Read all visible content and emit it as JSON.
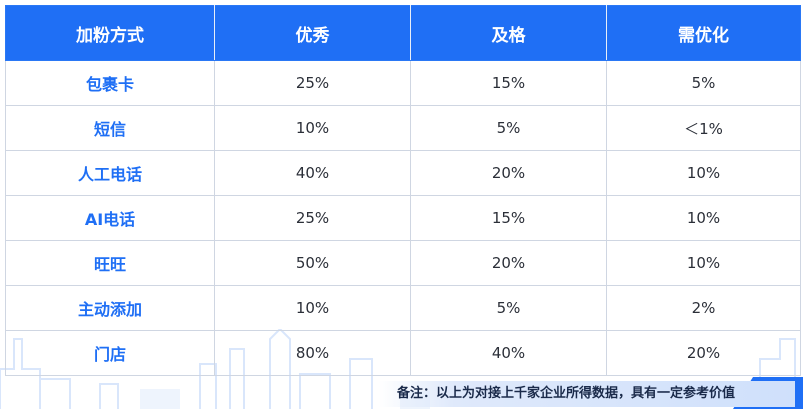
{
  "table": {
    "headers": [
      "加粉方式",
      "优秀",
      "及格",
      "需优化"
    ],
    "rows": [
      {
        "method": "包裹卡",
        "excellent": "25%",
        "pass": "15%",
        "improve": "5%"
      },
      {
        "method": "短信",
        "excellent": "10%",
        "pass": "5%",
        "improve": "＜1%"
      },
      {
        "method": "人工电话",
        "excellent": "40%",
        "pass": "20%",
        "improve": "10%"
      },
      {
        "method": "AI电话",
        "excellent": "25%",
        "pass": "15%",
        "improve": "10%"
      },
      {
        "method": "旺旺",
        "excellent": "50%",
        "pass": "20%",
        "improve": "10%"
      },
      {
        "method": "主动添加",
        "excellent": "10%",
        "pass": "5%",
        "improve": "2%"
      },
      {
        "method": "门店",
        "excellent": "80%",
        "pass": "40%",
        "improve": "20%"
      }
    ]
  },
  "note": "备注：以上为对接上千家企业所得数据，具有一定参考价值",
  "colors": {
    "header_bg": "#1f6ff5",
    "method_text": "#1f6ff5",
    "note_bg": "#cfe0fb"
  }
}
